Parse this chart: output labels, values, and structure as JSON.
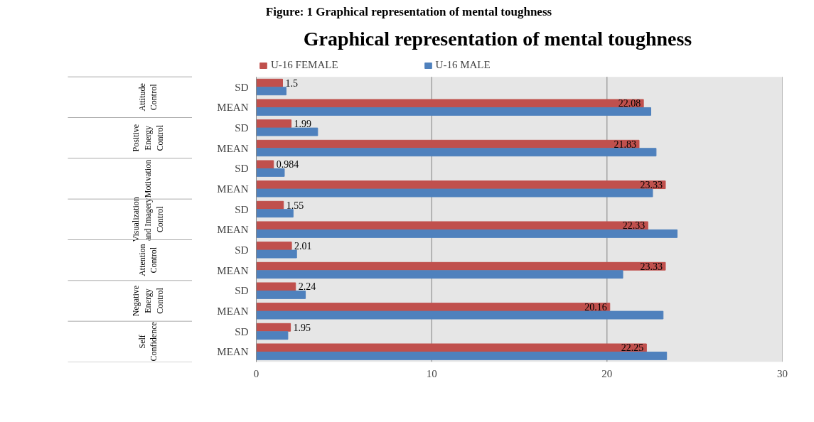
{
  "chart_data": {
    "type": "bar",
    "orientation": "horizontal",
    "title": "Graphical representation of mental toughness",
    "annotations": [
      "Figure: 1 Graphical representation of mental toughness",
      "Attitude Control",
      "Positive Energy Control",
      "Motivation",
      "Visualization and Imagery Control",
      "Attention Control",
      "Negative Energy Control",
      "Self Confidence"
    ],
    "categories": [
      "SD",
      "MEAN",
      "SD",
      "MEAN",
      "SD",
      "MEAN",
      "SD",
      "MEAN",
      "SD",
      "MEAN",
      "SD",
      "MEAN",
      "SD",
      "MEAN"
    ],
    "series": [
      {
        "name": "U-16 FEMALE",
        "color": "#c0504d",
        "values": [
          1.5,
          22.08,
          1.99,
          21.83,
          0.984,
          23.33,
          1.55,
          22.33,
          2.01,
          23.33,
          2.24,
          20.16,
          1.95,
          22.25
        ],
        "value_labels": [
          "1.5",
          "22.08",
          "1.99",
          "21.83",
          "0.984",
          "23.33",
          "1.55",
          "22.33",
          "2.01",
          "23.33",
          "2.24",
          "20.16",
          "1.95",
          "22.25"
        ]
      },
      {
        "name": "U-16 MALE",
        "color": "#4f81bd",
        "values": [
          1.7,
          22.5,
          3.5,
          22.8,
          1.6,
          22.6,
          2.1,
          24.0,
          2.3,
          20.9,
          2.8,
          23.2,
          1.8,
          23.4
        ]
      }
    ],
    "xlim": [
      0,
      30
    ],
    "xticks": [
      0,
      10,
      20,
      30
    ],
    "grid": "x",
    "legend": "top"
  }
}
